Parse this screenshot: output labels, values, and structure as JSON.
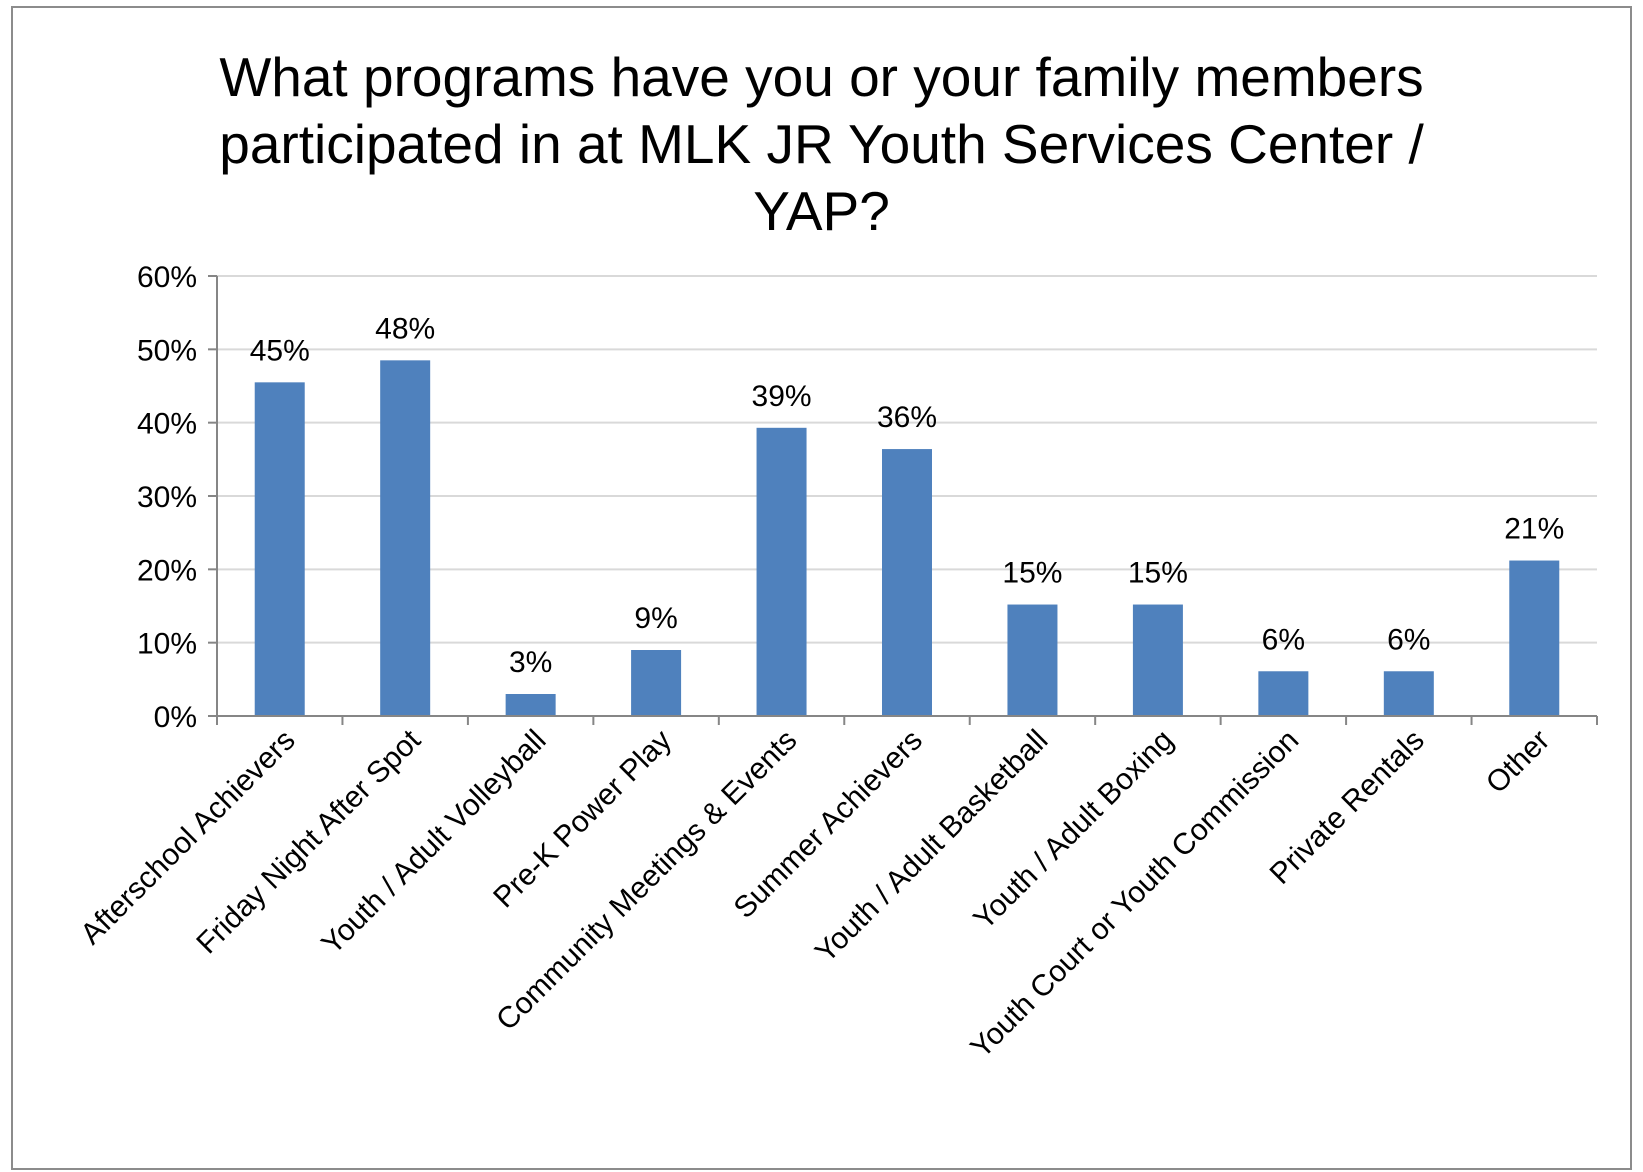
{
  "chart_data": {
    "type": "bar",
    "title_lines": [
      "What programs have you or your family members",
      "participated in at MLK JR Youth Services Center /",
      "YAP?"
    ],
    "categories": [
      "Afterschool Achievers",
      "Friday Night After Spot",
      "Youth / Adult Volleyball",
      "Pre-K Power Play",
      "Community Meetings & Events",
      "Summer Achievers",
      "Youth / Adult Basketball",
      "Youth / Adult Boxing",
      "Youth Court or Youth Commission",
      "Private Rentals",
      "Other"
    ],
    "values": [
      45.5,
      48.5,
      3.0,
      9.0,
      39.3,
      36.4,
      15.2,
      15.2,
      6.1,
      6.1,
      21.2
    ],
    "data_labels": [
      "45%",
      "48%",
      "3%",
      "9%",
      "39%",
      "36%",
      "15%",
      "15%",
      "6%",
      "6%",
      "21%"
    ],
    "y_ticks": [
      0,
      10,
      20,
      30,
      40,
      50,
      60
    ],
    "y_tick_labels": [
      "0%",
      "10%",
      "20%",
      "30%",
      "40%",
      "50%",
      "60%"
    ],
    "ylim": [
      0,
      60
    ],
    "xlabel": "",
    "ylabel": "",
    "grid": true,
    "legend": "none",
    "colors": {
      "bar": "#4f81bd",
      "grid": "#d9d9d9",
      "axis": "#868686",
      "frame": "#8c8c8c"
    }
  }
}
